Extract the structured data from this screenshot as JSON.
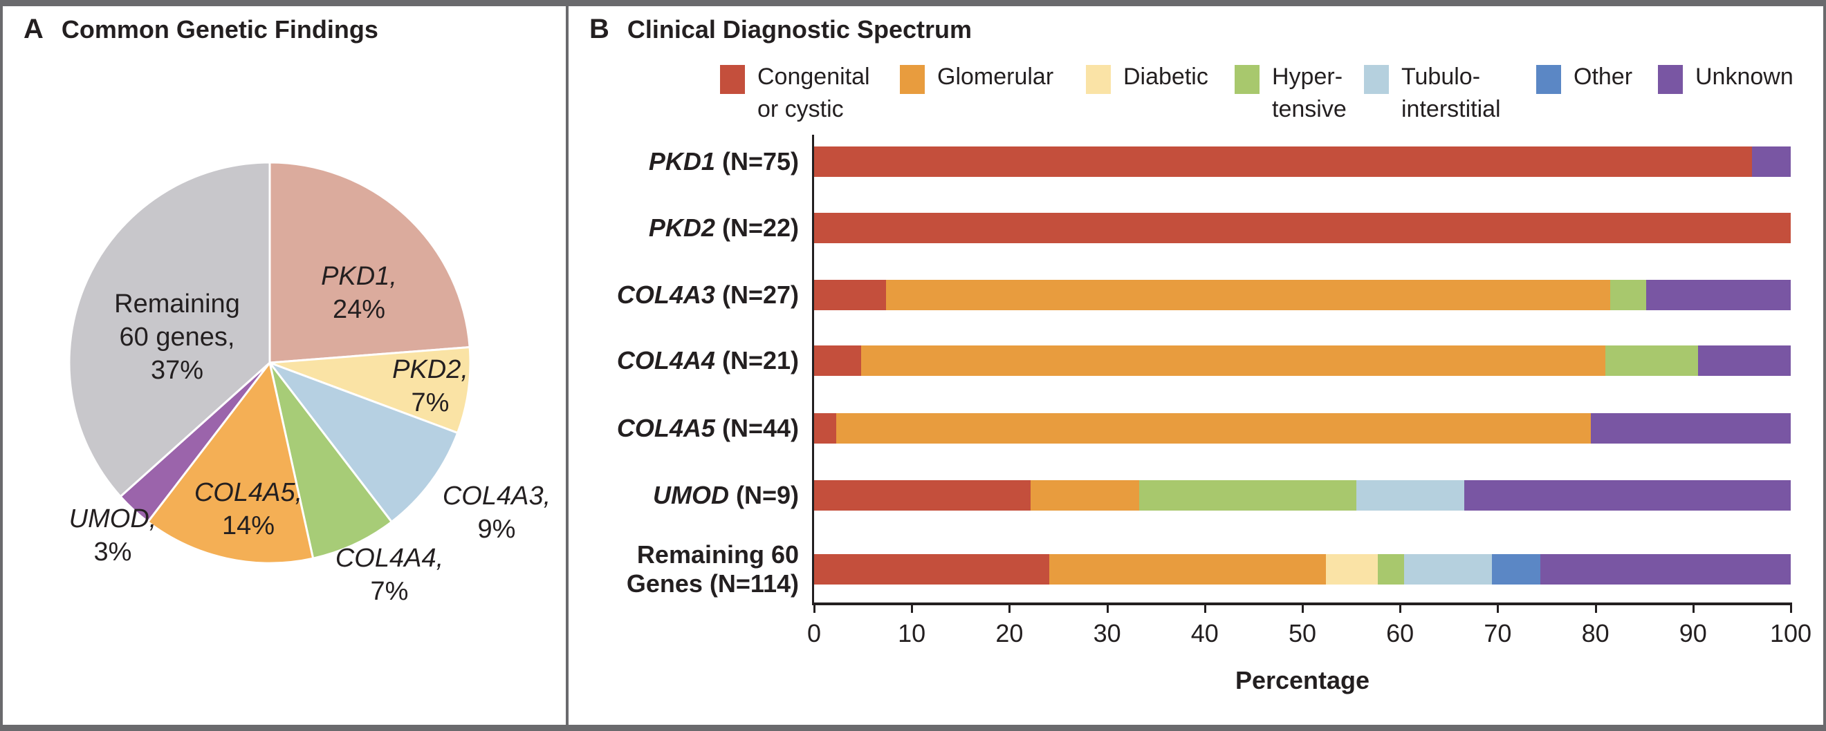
{
  "panelA": {
    "letter": "A",
    "title": "Common Genetic Findings"
  },
  "panelB": {
    "letter": "B",
    "title": "Clinical Diagnostic Spectrum"
  },
  "colors": {
    "congenital": "#c44f3c",
    "glomerular": "#e89c3e",
    "diabetic": "#fae3a6",
    "hypertensive": "#a8c86d",
    "tubulointerstitial": "#b5d0de",
    "other": "#5b87c5",
    "unknown": "#7956a3",
    "axis_text": "#231f20"
  },
  "chart_data": [
    {
      "type": "pie",
      "title": "Common Genetic Findings",
      "start_angle_deg": 0,
      "direction": "clockwise",
      "slices": [
        {
          "name": "PKD1",
          "value": 24,
          "color": "#dbab9d",
          "gene": true,
          "lines": [
            "PKD1,",
            "24%"
          ]
        },
        {
          "name": "PKD2",
          "value": 7,
          "color": "#fae3a5",
          "gene": true,
          "lines": [
            "PKD2,",
            "7%"
          ]
        },
        {
          "name": "COL4A3",
          "value": 9,
          "color": "#b6d0e2",
          "gene": true,
          "lines": [
            "COL4A3,",
            "9%"
          ]
        },
        {
          "name": "COL4A4",
          "value": 7,
          "color": "#a7cc77",
          "gene": true,
          "lines": [
            "COL4A4,",
            "7%"
          ]
        },
        {
          "name": "COL4A5",
          "value": 14,
          "color": "#f4af55",
          "gene": true,
          "lines": [
            "COL4A5,",
            "14%"
          ]
        },
        {
          "name": "UMOD",
          "value": 3,
          "color": "#9b64ab",
          "gene": true,
          "lines": [
            "UMOD,",
            "3%"
          ]
        },
        {
          "name": "Remaining 60 genes",
          "value": 37,
          "color": "#c8c7cb",
          "gene": false,
          "lines": [
            "Remaining",
            "60 genes,",
            "37%"
          ]
        }
      ]
    },
    {
      "type": "bar",
      "subtype": "horizontal-stacked",
      "title": "Clinical Diagnostic Spectrum",
      "xlabel": "Percentage",
      "xlim": [
        0,
        100
      ],
      "xticks": [
        0,
        10,
        20,
        30,
        40,
        50,
        60,
        70,
        80,
        90,
        100
      ],
      "legend": [
        {
          "key": "congenital",
          "lines": [
            "Congenital",
            "or cystic"
          ]
        },
        {
          "key": "glomerular",
          "lines": [
            "Glomerular"
          ]
        },
        {
          "key": "diabetic",
          "lines": [
            "Diabetic"
          ]
        },
        {
          "key": "hypertensive",
          "lines": [
            "Hyper-",
            "tensive"
          ]
        },
        {
          "key": "tubulointerstitial",
          "lines": [
            "Tubulo-",
            "interstitial"
          ]
        },
        {
          "key": "other",
          "lines": [
            "Other"
          ]
        },
        {
          "key": "unknown",
          "lines": [
            "Unknown"
          ]
        }
      ],
      "rows": [
        {
          "gene": "PKD1",
          "n_label": "(N=75)",
          "label_lines": null,
          "segments": [
            {
              "cat": "congenital",
              "pct": 96.0
            },
            {
              "cat": "unknown",
              "pct": 4.0
            }
          ]
        },
        {
          "gene": "PKD2",
          "n_label": "(N=22)",
          "label_lines": null,
          "segments": [
            {
              "cat": "congenital",
              "pct": 100.0
            }
          ]
        },
        {
          "gene": "COL4A3",
          "n_label": "(N=27)",
          "label_lines": null,
          "segments": [
            {
              "cat": "congenital",
              "pct": 7.4
            },
            {
              "cat": "glomerular",
              "pct": 74.1
            },
            {
              "cat": "hypertensive",
              "pct": 3.7
            },
            {
              "cat": "unknown",
              "pct": 14.8
            }
          ]
        },
        {
          "gene": "COL4A4",
          "n_label": "(N=21)",
          "label_lines": null,
          "segments": [
            {
              "cat": "congenital",
              "pct": 4.8
            },
            {
              "cat": "glomerular",
              "pct": 76.2
            },
            {
              "cat": "hypertensive",
              "pct": 9.5
            },
            {
              "cat": "unknown",
              "pct": 9.5
            }
          ]
        },
        {
          "gene": "COL4A5",
          "n_label": "(N=44)",
          "label_lines": null,
          "segments": [
            {
              "cat": "congenital",
              "pct": 2.3
            },
            {
              "cat": "glomerular",
              "pct": 77.2
            },
            {
              "cat": "unknown",
              "pct": 20.5
            }
          ]
        },
        {
          "gene": "UMOD",
          "n_label": "(N=9)",
          "label_lines": null,
          "segments": [
            {
              "cat": "congenital",
              "pct": 22.2
            },
            {
              "cat": "glomerular",
              "pct": 11.1
            },
            {
              "cat": "hypertensive",
              "pct": 22.2
            },
            {
              "cat": "tubulointerstitial",
              "pct": 11.1
            },
            {
              "cat": "unknown",
              "pct": 33.4
            }
          ]
        },
        {
          "gene": null,
          "n_label": null,
          "label_lines": [
            "Remaining 60",
            "Genes (N=114)"
          ],
          "segments": [
            {
              "cat": "congenital",
              "pct": 24.1
            },
            {
              "cat": "glomerular",
              "pct": 28.3
            },
            {
              "cat": "diabetic",
              "pct": 5.3
            },
            {
              "cat": "hypertensive",
              "pct": 2.7
            },
            {
              "cat": "tubulointerstitial",
              "pct": 9.0
            },
            {
              "cat": "other",
              "pct": 5.0
            },
            {
              "cat": "unknown",
              "pct": 25.6
            }
          ]
        }
      ]
    }
  ]
}
